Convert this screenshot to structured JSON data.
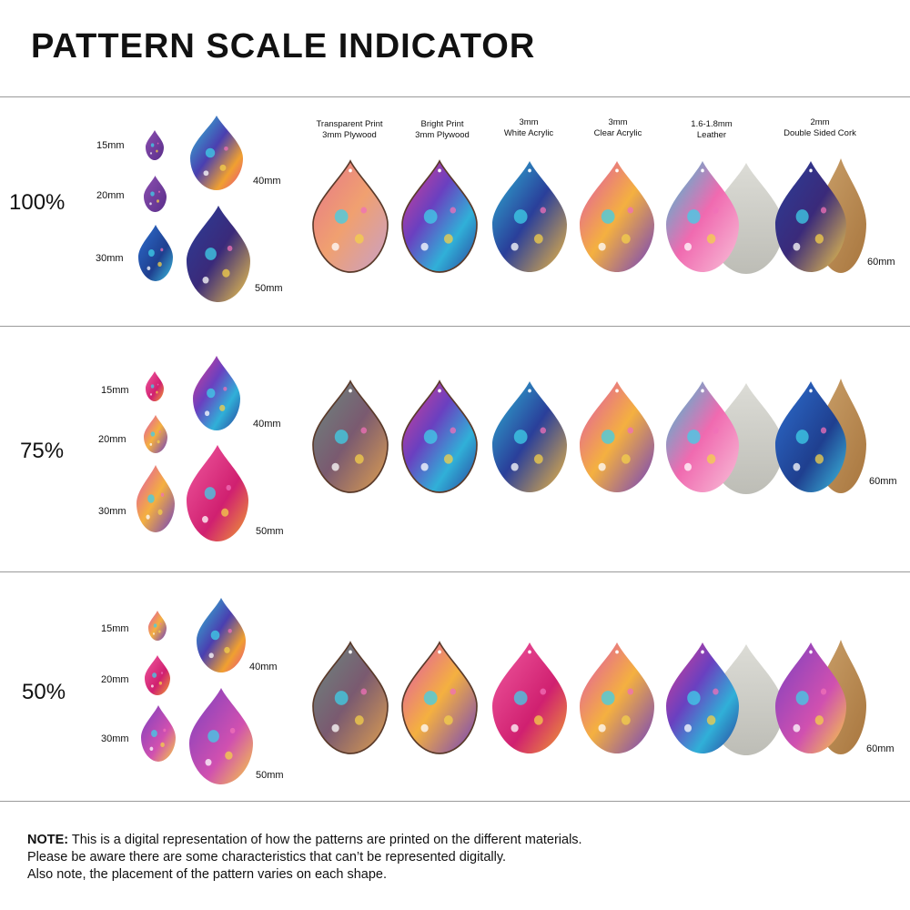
{
  "title": "PATTERN SCALE INDICATOR",
  "materials": [
    "Transparent Print\n3mm Plywood",
    "Bright Print\n3mm Plywood",
    "3mm\nWhite Acrylic",
    "3mm\nClear Acrylic",
    "1.6-1.8mm\nLeather",
    "2mm\nDouble Sided Cork"
  ],
  "size_labels": {
    "s15": "15mm",
    "s20": "20mm",
    "s30": "30mm",
    "s40": "40mm",
    "s50": "50mm",
    "s60": "60mm"
  },
  "rows": [
    {
      "scale": "100%"
    },
    {
      "scale": "75%"
    },
    {
      "scale": "50%"
    }
  ],
  "note": {
    "lead": "NOTE:",
    "line1": " This is a digital representation of how the patterns are printed on the different materials.",
    "line2": "Please be aware there are some characteristics that can’t be represented digitally.",
    "line3": "Also note, the placement of the pattern varies on each shape."
  },
  "colors": {
    "rule": "#9a9a9a",
    "leather": "#cfcfca",
    "cork": "#b98a52"
  }
}
